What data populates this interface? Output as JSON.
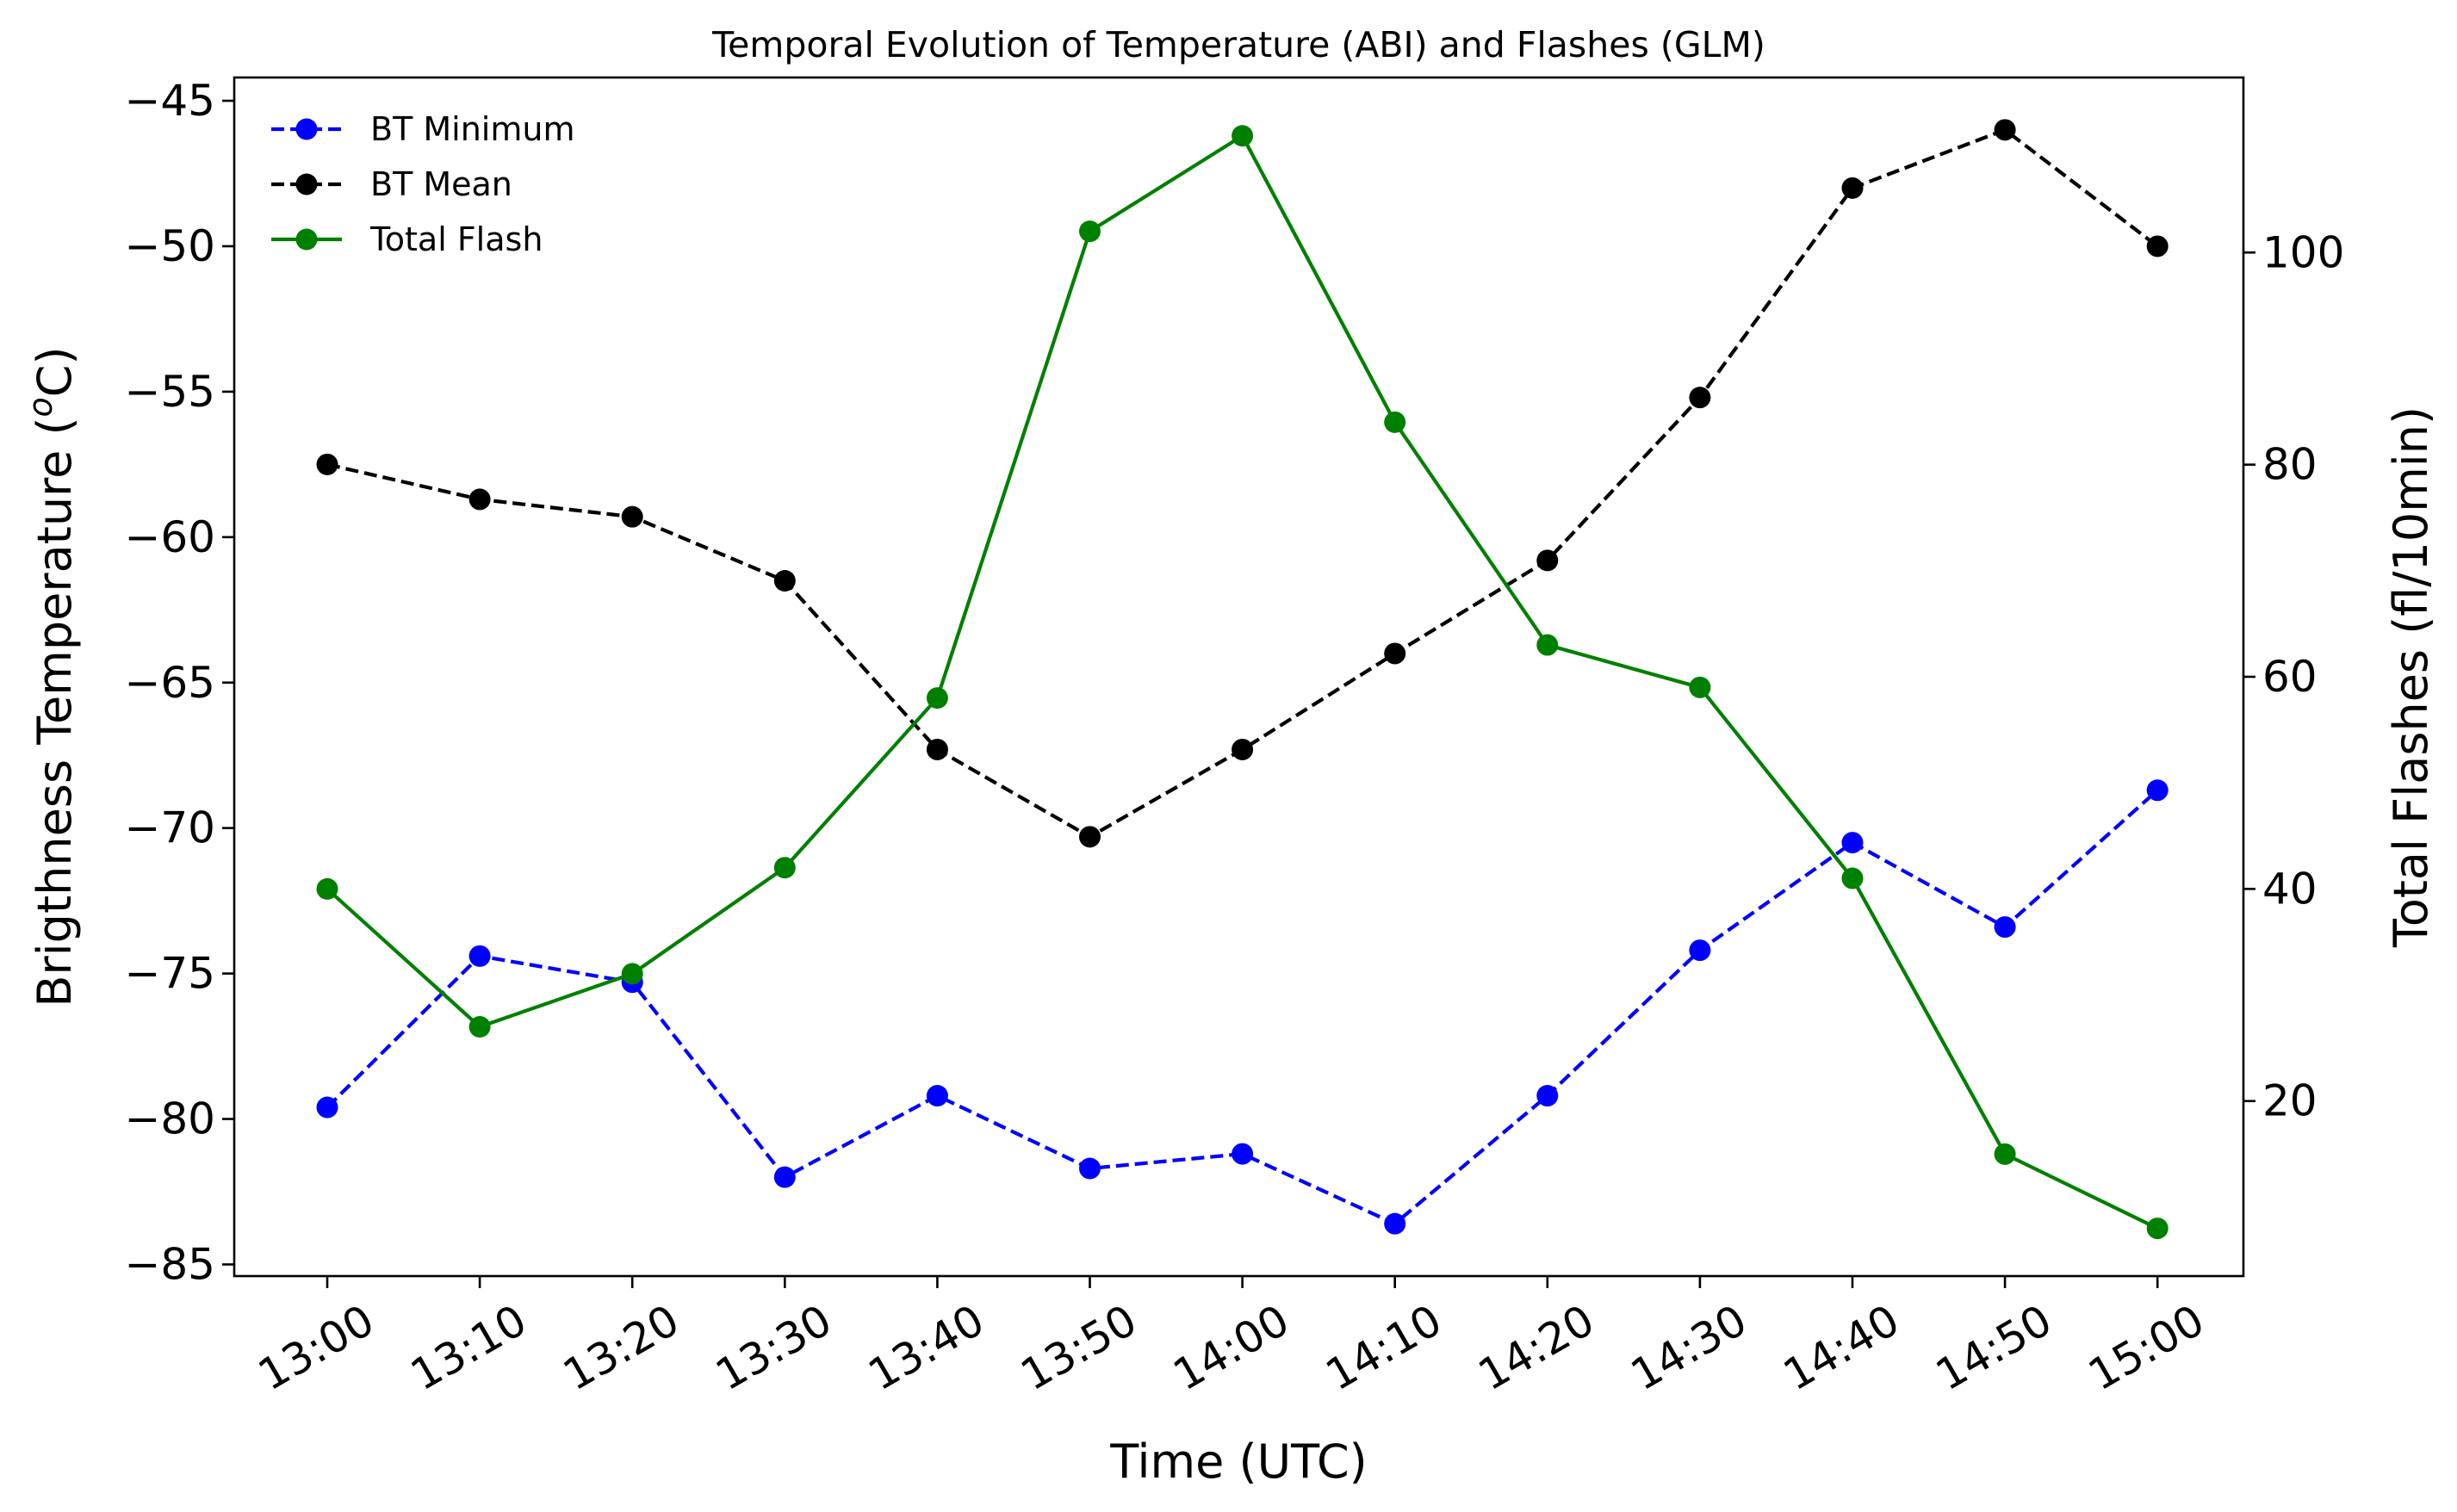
{
  "chart_data": {
    "type": "line",
    "title": "Temporal Evolution of Temperature (ABI) and Flashes (GLM)",
    "xlabel": "Time (UTC)",
    "ylabel_left": {
      "base": "Brigthness Temperature (",
      "sup": "o",
      "unit": "C)"
    },
    "ylabel_right": "Total Flashes (fl/10min)",
    "categories": [
      "13:00",
      "13:10",
      "13:20",
      "13:30",
      "13:40",
      "13:50",
      "14:00",
      "14:10",
      "14:20",
      "14:30",
      "14:40",
      "14:50",
      "15:00"
    ],
    "ylim_left": [
      -85.4,
      -44.2
    ],
    "yticks_left": [
      -85,
      -80,
      -75,
      -70,
      -65,
      -60,
      -55,
      -50,
      -45
    ],
    "ytick_labels_left": [
      "−85",
      "−80",
      "−75",
      "−70",
      "−65",
      "−60",
      "−55",
      "−50",
      "−45"
    ],
    "ylim_right": [
      3.5,
      116.5
    ],
    "yticks_right": [
      20,
      40,
      60,
      80,
      100
    ],
    "ytick_labels_right": [
      "20",
      "40",
      "60",
      "80",
      "100"
    ],
    "legend_position": "upper-left",
    "series": [
      {
        "name": "BT Minimum",
        "axis": "left",
        "color": "#0000ff",
        "linestyle": "dashed",
        "marker": "circle",
        "values": [
          -79.6,
          -74.4,
          -75.3,
          -82.0,
          -79.2,
          -81.7,
          -81.2,
          -83.6,
          -79.2,
          -74.2,
          -70.5,
          -73.4,
          -68.7
        ]
      },
      {
        "name": "BT Mean",
        "axis": "left",
        "color": "#000000",
        "linestyle": "dashed",
        "marker": "circle",
        "values": [
          -57.5,
          -58.7,
          -59.3,
          -61.5,
          -67.3,
          -70.3,
          -67.3,
          -64.0,
          -60.8,
          -55.2,
          -48.0,
          -46.0,
          -50.0
        ]
      },
      {
        "name": "Total Flash",
        "axis": "right",
        "color": "#008000",
        "linestyle": "solid",
        "marker": "circle",
        "values": [
          40,
          27,
          32,
          42,
          58,
          102,
          111,
          84,
          63,
          59,
          41,
          15,
          8
        ]
      }
    ]
  }
}
